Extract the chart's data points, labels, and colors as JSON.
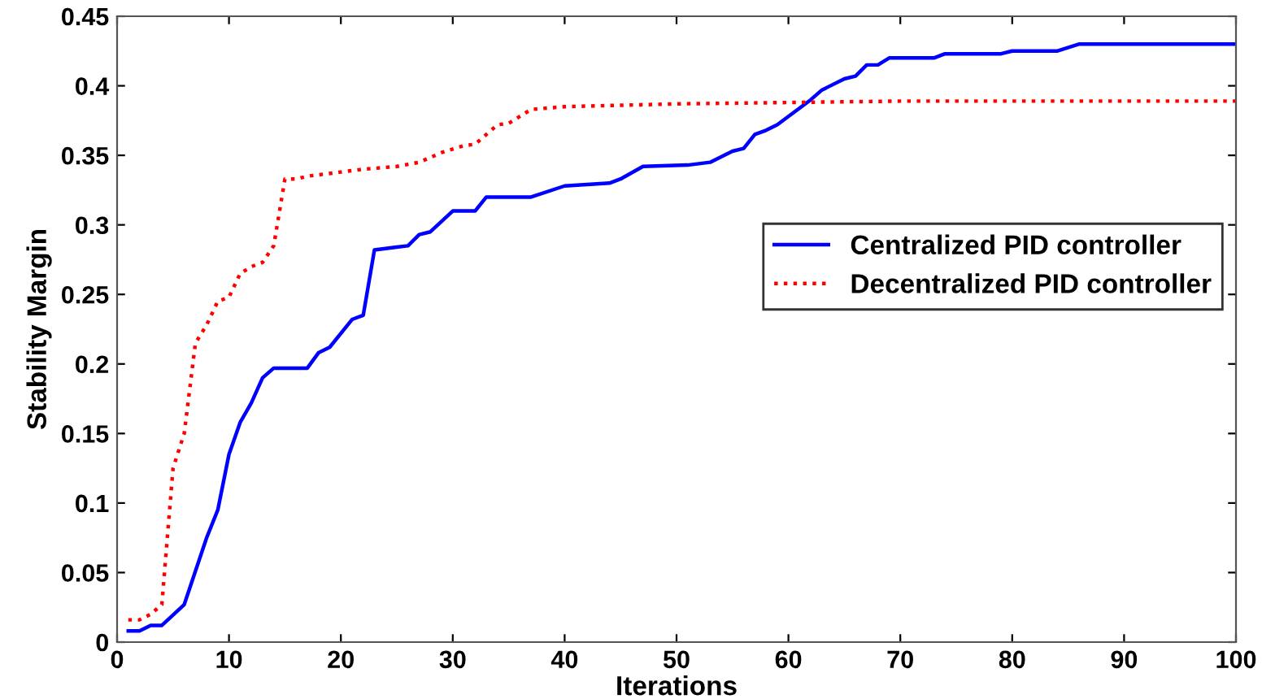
{
  "chart_data": {
    "type": "line",
    "xlabel": "Iterations",
    "ylabel": "Stability Margin",
    "xlim": [
      0,
      100
    ],
    "ylim": [
      0,
      0.45
    ],
    "xticks": [
      0,
      10,
      20,
      30,
      40,
      50,
      60,
      70,
      80,
      90,
      100
    ],
    "yticks": [
      0,
      0.05,
      0.1,
      0.15,
      0.2,
      0.25,
      0.3,
      0.35,
      0.4,
      0.45
    ],
    "grid": false,
    "legend": "right",
    "marker": "none",
    "series": [
      {
        "name": "Centralized PID controller",
        "color": "#0000ff",
        "line_style": "solid",
        "x": [
          1,
          2,
          3,
          4,
          6,
          8,
          9,
          10,
          11,
          12,
          13,
          14,
          17,
          18,
          19,
          21,
          22,
          23,
          25,
          26,
          27,
          28,
          30,
          32,
          33,
          37,
          40,
          44,
          45,
          47,
          51,
          53,
          55,
          56,
          57,
          58,
          59,
          62,
          63,
          65,
          66,
          67,
          68,
          69,
          73,
          74,
          79,
          80,
          84,
          86,
          100
        ],
        "values": [
          0.008,
          0.008,
          0.012,
          0.012,
          0.027,
          0.075,
          0.095,
          0.135,
          0.158,
          0.172,
          0.19,
          0.197,
          0.197,
          0.208,
          0.212,
          0.232,
          0.235,
          0.282,
          0.284,
          0.285,
          0.293,
          0.295,
          0.31,
          0.31,
          0.32,
          0.32,
          0.328,
          0.33,
          0.333,
          0.342,
          0.343,
          0.345,
          0.353,
          0.355,
          0.365,
          0.368,
          0.372,
          0.39,
          0.397,
          0.405,
          0.407,
          0.415,
          0.415,
          0.42,
          0.42,
          0.423,
          0.423,
          0.425,
          0.425,
          0.43,
          0.43
        ]
      },
      {
        "name": "Decentralized PID controller",
        "color": "#ff0000",
        "line_style": "dotted",
        "x": [
          1,
          2,
          3,
          4,
          5,
          6,
          7,
          8,
          9,
          10,
          11,
          12,
          13,
          14,
          15,
          16,
          17,
          20,
          22,
          25,
          27,
          29,
          31,
          32,
          34,
          35,
          37,
          40,
          45,
          50,
          60,
          70,
          100
        ],
        "values": [
          0.016,
          0.016,
          0.02,
          0.027,
          0.125,
          0.15,
          0.215,
          0.228,
          0.245,
          0.248,
          0.265,
          0.27,
          0.273,
          0.285,
          0.333,
          0.333,
          0.335,
          0.338,
          0.34,
          0.342,
          0.345,
          0.352,
          0.357,
          0.358,
          0.372,
          0.373,
          0.383,
          0.385,
          0.386,
          0.387,
          0.388,
          0.389,
          0.389
        ]
      }
    ]
  }
}
